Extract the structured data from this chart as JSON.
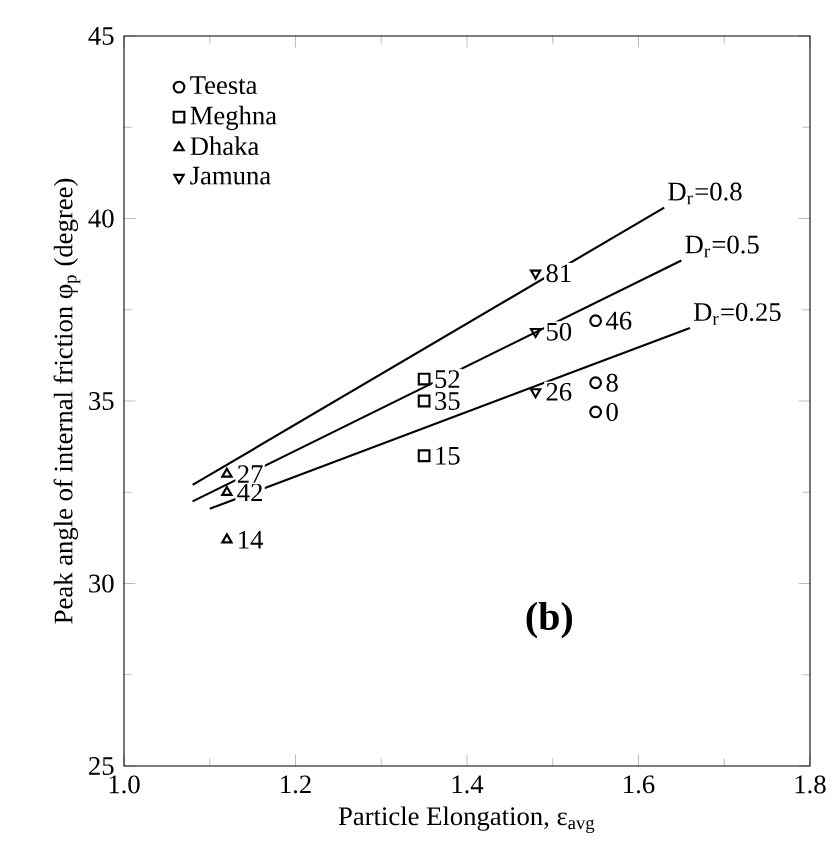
{
  "chart_data": {
    "type": "scatter",
    "xlabel": "Particle Elongation, ε$_{avg}$",
    "ylabel": "Peak angle of internal friction φ$_{p}$ (degree)",
    "xlim": [
      1.0,
      1.8
    ],
    "ylim": [
      25,
      45
    ],
    "xticks": [
      {
        "value": 1.0,
        "label": "1.0"
      },
      {
        "value": 1.2,
        "label": "1.2"
      },
      {
        "value": 1.4,
        "label": "1.4"
      },
      {
        "value": 1.6,
        "label": "1.6"
      },
      {
        "value": 1.8,
        "label": "1.8"
      }
    ],
    "yticks": [
      25,
      30,
      35,
      40,
      45
    ],
    "grid": false,
    "legend": "top left",
    "series": [
      {
        "name": "Teesta",
        "color": "#000000",
        "marker": "circle",
        "x": [
          1.55,
          1.55,
          1.55
        ],
        "values": [
          34.7,
          35.5,
          37.2
        ]
      },
      {
        "name": "Meghna",
        "color": "#000000",
        "marker": "square",
        "x": [
          1.35,
          1.35,
          1.35
        ],
        "values": [
          33.5,
          35.0,
          35.6
        ]
      },
      {
        "name": "Dhaka",
        "color": "#000000",
        "marker": "triangle",
        "x": [
          1.12,
          1.12,
          1.12
        ],
        "values": [
          31.2,
          32.5,
          33.0
        ]
      },
      {
        "name": "Jamuna",
        "color": "#000000",
        "marker": "triangle_down",
        "x": [
          1.48,
          1.48,
          1.48
        ],
        "values": [
          35.25,
          36.9,
          38.5
        ]
      },
      {
        "name": "D$_{r}$=0.8",
        "type": "line",
        "color": "#000000",
        "marker": "none",
        "x": [
          1.08,
          1.63
        ],
        "values": [
          32.7,
          40.3
        ]
      },
      {
        "name": "D$_{r}$=0.5",
        "type": "line",
        "color": "#000000",
        "marker": "none",
        "x": [
          1.08,
          1.65
        ],
        "values": [
          32.25,
          38.85
        ]
      },
      {
        "name": "D$_{r}$=0.25",
        "type": "line",
        "color": "#000000",
        "marker": "none",
        "x": [
          1.1,
          1.66
        ],
        "values": [
          32.05,
          37.0
        ]
      }
    ],
    "annotations": [
      {
        "text": "0",
        "x": 1.55,
        "y": 34.7
      },
      {
        "text": "8",
        "x": 1.55,
        "y": 35.5
      },
      {
        "text": "46",
        "x": 1.55,
        "y": 37.2
      },
      {
        "text": "15",
        "x": 1.35,
        "y": 33.5
      },
      {
        "text": "35",
        "x": 1.35,
        "y": 35.0
      },
      {
        "text": "52",
        "x": 1.35,
        "y": 35.6
      },
      {
        "text": "14",
        "x": 1.12,
        "y": 31.2
      },
      {
        "text": "42",
        "x": 1.12,
        "y": 32.5
      },
      {
        "text": "27",
        "x": 1.12,
        "y": 33.0
      },
      {
        "text": "26",
        "x": 1.48,
        "y": 35.25
      },
      {
        "text": "50",
        "x": 1.48,
        "y": 36.9
      },
      {
        "text": "81",
        "x": 1.48,
        "y": 38.5
      },
      "(b)"
    ]
  }
}
